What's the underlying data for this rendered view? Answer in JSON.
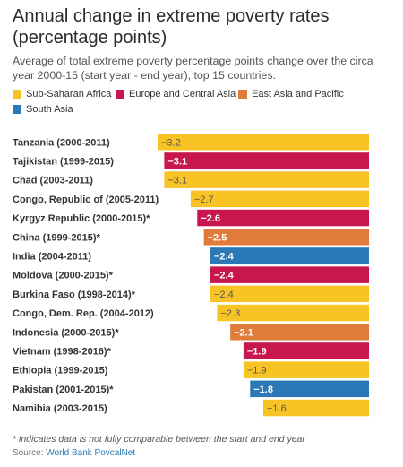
{
  "title": "Annual change in extreme poverty rates (percentage points)",
  "subtitle": "Average of total extreme poverty percentage points change over the circa year 2000-15 (start year - end year), top 15 countries.",
  "legend": [
    {
      "name": "Sub-Saharan Africa",
      "color": "#f7c325"
    },
    {
      "name": "Europe and Central Asia",
      "color": "#c8174e"
    },
    {
      "name": "East Asia and Pacific",
      "color": "#e07b3a"
    },
    {
      "name": "South Asia",
      "color": "#2a78b5"
    }
  ],
  "footnote": "* indicates data is not fully comparable between the start and end year",
  "source": {
    "label": "Source:",
    "text": "World Bank PovcalNet"
  },
  "chart_data": {
    "type": "bar",
    "orientation": "horizontal",
    "value_labels": [
      "−3.2",
      "−3.1",
      "−3.1",
      "−2.7",
      "−2.6",
      "−2.5",
      "−2.4",
      "−2.4",
      "−2.4",
      "−2.3",
      "−2.1",
      "−1.9",
      "−1.9",
      "−1.8",
      "−1.6"
    ],
    "categories": [
      "Tanzania (2000-2011)",
      "Tajikistan (1999-2015)",
      "Chad (2003-2011)",
      "Congo, Republic of (2005-2011)",
      "Kyrgyz Republic (2000-2015)*",
      "China (1999-2015)*",
      "India (2004-2011)",
      "Moldova (2000-2015)*",
      "Burkina Faso (1998-2014)*",
      "Congo, Dem. Rep. (2004-2012)",
      "Indonesia (2000-2015)*",
      "Vietnam (1998-2016)*",
      "Ethiopia (1999-2015)",
      "Pakistan (2001-2015)*",
      "Namibia (2003-2015)"
    ],
    "values": [
      -3.2,
      -3.1,
      -3.1,
      -2.7,
      -2.6,
      -2.5,
      -2.4,
      -2.4,
      -2.4,
      -2.3,
      -2.1,
      -1.9,
      -1.9,
      -1.8,
      -1.6
    ],
    "regions": [
      "Sub-Saharan Africa",
      "Europe and Central Asia",
      "Sub-Saharan Africa",
      "Sub-Saharan Africa",
      "Europe and Central Asia",
      "East Asia and Pacific",
      "South Asia",
      "Europe and Central Asia",
      "Sub-Saharan Africa",
      "Sub-Saharan Africa",
      "East Asia and Pacific",
      "Europe and Central Asia",
      "Sub-Saharan Africa",
      "South Asia",
      "Sub-Saharan Africa"
    ],
    "label_style": {
      "light_bar_text": "#555555",
      "dark_bar_text": "#ffffff"
    },
    "xlim": [
      -3.2,
      0
    ],
    "grid": false
  }
}
